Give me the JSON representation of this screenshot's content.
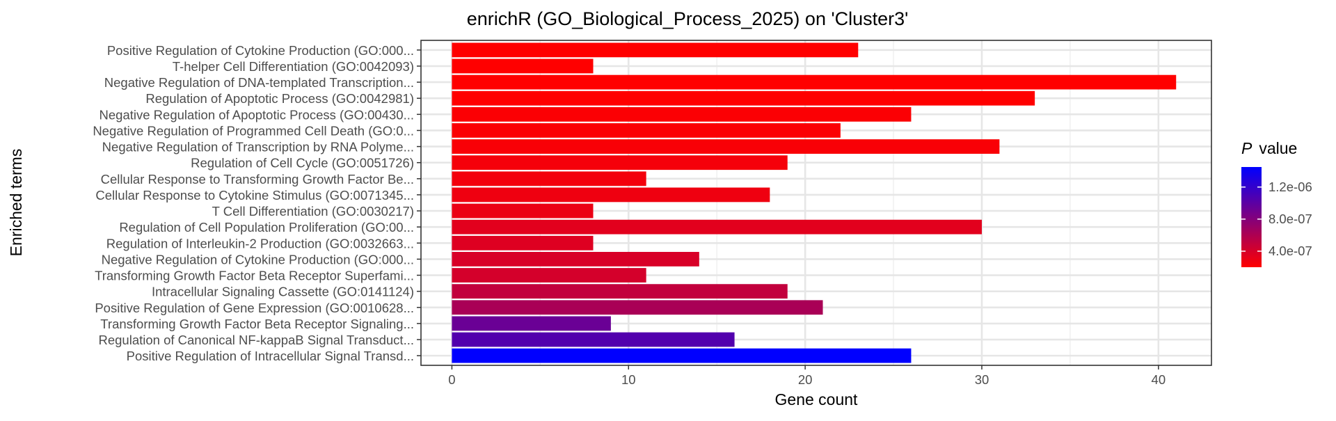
{
  "chart_data": {
    "type": "bar",
    "orientation": "horizontal",
    "title": "enrichR (GO_Biological_Process_2025) on 'Cluster3'",
    "xlabel": "Gene count",
    "ylabel": "Enriched terms",
    "xlim": [
      -1.75,
      43
    ],
    "xticks": [
      0,
      10,
      20,
      30,
      40
    ],
    "grid": true,
    "legend": {
      "title_italic": "P",
      "title_rest": "value",
      "placement": "right",
      "color_low": "#ff0000",
      "color_high": "#0000ff",
      "range": [
        2e-07,
        1.45e-06
      ],
      "ticks": [
        {
          "value": 4e-07,
          "label": "4.0e-07"
        },
        {
          "value": 8e-07,
          "label": "8.0e-07"
        },
        {
          "value": 1.2e-06,
          "label": "1.2e-06"
        }
      ]
    },
    "categories": [
      "Positive Regulation of Cytokine Production (GO:000...",
      "T-helper Cell Differentiation (GO:0042093)",
      "Negative Regulation of DNA-templated Transcription...",
      "Regulation of Apoptotic Process (GO:0042981)",
      "Negative Regulation of Apoptotic Process (GO:00430...",
      "Negative Regulation of Programmed Cell Death (GO:0...",
      "Negative Regulation of Transcription by RNA Polyme...",
      "Regulation of Cell Cycle (GO:0051726)",
      "Cellular Response to Transforming Growth Factor Be...",
      "Cellular Response to Cytokine Stimulus (GO:0071345...",
      "T Cell Differentiation (GO:0030217)",
      "Regulation of Cell Population Proliferation (GO:00...",
      "Regulation of Interleukin-2 Production (GO:0032663...",
      "Negative Regulation of Cytokine Production (GO:000...",
      "Transforming Growth Factor Beta Receptor Superfami...",
      "Intracellular Signaling Cassette (GO:0141124)",
      "Positive Regulation of Gene Expression (GO:0010628...",
      "Transforming Growth Factor Beta Receptor Signaling...",
      "Regulation of Canonical NF-kappaB Signal Transduct...",
      "Positive Regulation of Intracellular Signal Transd..."
    ],
    "values": [
      23,
      8,
      41,
      33,
      26,
      22,
      31,
      19,
      11,
      18,
      8,
      30,
      8,
      14,
      11,
      19,
      21,
      9,
      16,
      26
    ],
    "p_values": [
      2e-07,
      2e-07,
      2e-07,
      2e-07,
      2.2e-07,
      2.2e-07,
      2.3e-07,
      2.5e-07,
      2.6e-07,
      2.8e-07,
      3e-07,
      3.4e-07,
      3.6e-07,
      3.9e-07,
      4.1e-07,
      5e-07,
      6.2e-07,
      9.3e-07,
      1.05e-06,
      1.45e-06
    ]
  }
}
